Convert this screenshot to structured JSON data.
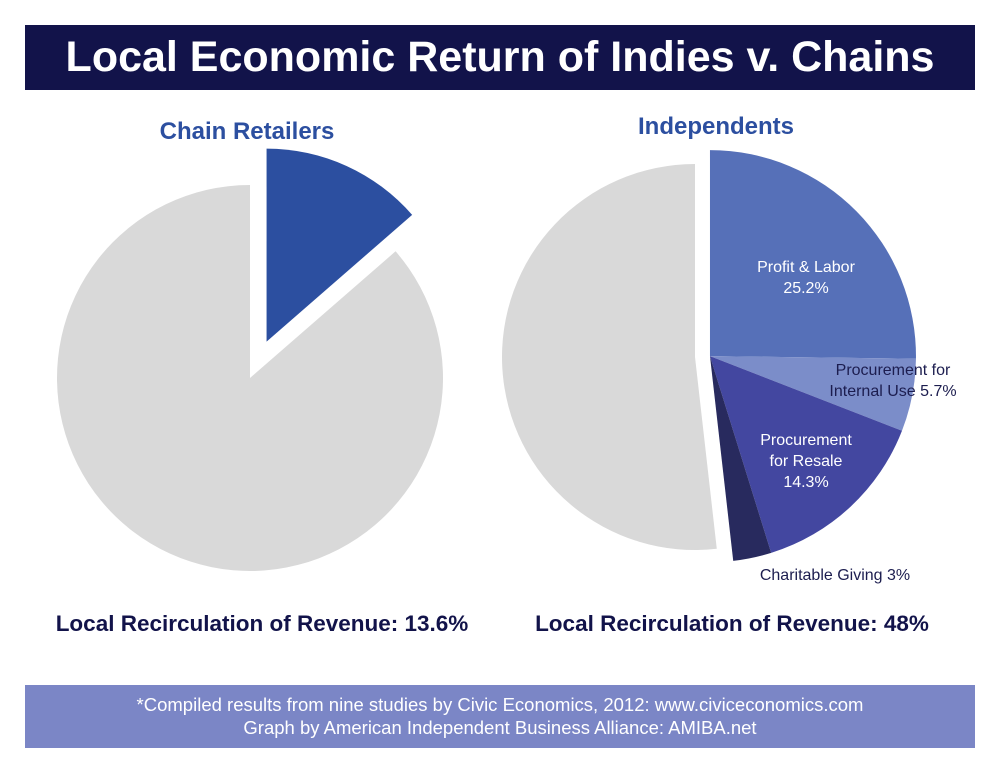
{
  "title": "Local Economic Return of Indies v. Chains",
  "chart_data": [
    {
      "type": "pie",
      "title": "Chain Retailers",
      "categories": [
        null,
        null
      ],
      "values": [
        13.6,
        86.4
      ],
      "colors": [
        "#2c4fa0",
        "#d9d9d9"
      ],
      "explode": [
        true,
        false
      ],
      "summary": "Local Recirculation of Revenue: 13.6%"
    },
    {
      "type": "pie",
      "title": "Independents",
      "categories": [
        "Profit & Labor",
        "Procurement for Internal Use",
        "Procurement for Resale",
        "Charitable Giving",
        null
      ],
      "values": [
        25.2,
        5.7,
        14.3,
        3,
        51.8
      ],
      "value_labels": [
        "25.2%",
        "5.7%",
        "14.3%",
        "3%",
        null
      ],
      "colors": [
        "#5670b8",
        "#7b8dc9",
        "#4347a0",
        "#282a5e",
        "#d9d9d9"
      ],
      "explode": [
        true,
        true,
        true,
        true,
        false
      ],
      "summary": "Local Recirculation of Revenue: 48%"
    }
  ],
  "footer": [
    "*Compiled results from nine studies by Civic Economics, 2012: www.civiceconomics.com",
    "Graph by American Independent Business Alliance: AMIBA.net"
  ]
}
